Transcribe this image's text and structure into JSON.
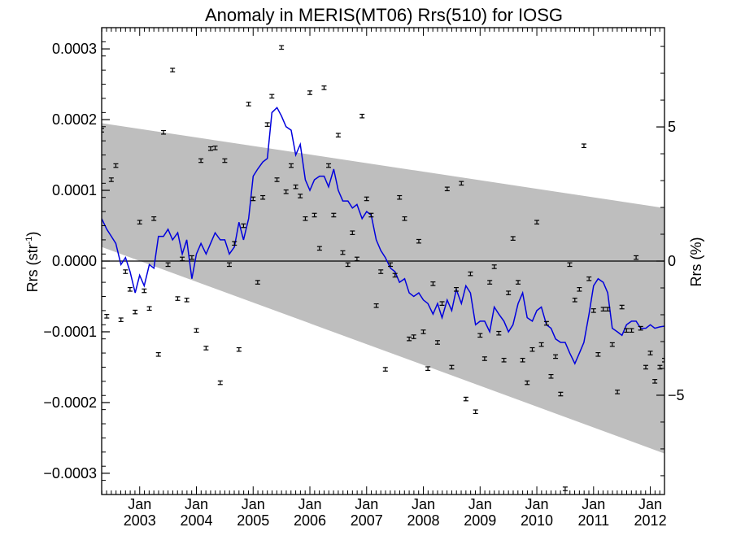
{
  "chart_data": {
    "type": "line",
    "title": "Anomaly in MERIS(MT06) Rrs(510) for IOSG",
    "ylabel_left": "Rrs (str",
    "ylabel_left_sup": "-1",
    "ylabel_left_close": ")",
    "ylabel_right": "Rrs (%)",
    "xlim": [
      2002.33,
      2012.25
    ],
    "ylim": [
      -0.00033,
      0.00033
    ],
    "ylim_right": [
      -8.7,
      8.7
    ],
    "grid": false,
    "left_ticks": [
      {
        "value": 0.0003,
        "label": "0.0003"
      },
      {
        "value": 0.0002,
        "label": "0.0002"
      },
      {
        "value": 0.0001,
        "label": "0.0001"
      },
      {
        "value": 0.0,
        "label": "0.0000"
      },
      {
        "value": -0.0001,
        "label": "−0.0001"
      },
      {
        "value": -0.0002,
        "label": "−0.0002"
      },
      {
        "value": -0.0003,
        "label": "−0.0003"
      }
    ],
    "right_ticks": [
      {
        "value": 5,
        "label": "5"
      },
      {
        "value": 0,
        "label": "0"
      },
      {
        "value": -5,
        "label": "−5"
      }
    ],
    "x_ticks": [
      {
        "value": 2003.0,
        "month": "Jan",
        "year": "2003"
      },
      {
        "value": 2004.0,
        "month": "Jan",
        "year": "2004"
      },
      {
        "value": 2005.0,
        "month": "Jan",
        "year": "2005"
      },
      {
        "value": 2006.0,
        "month": "Jan",
        "year": "2006"
      },
      {
        "value": 2007.0,
        "month": "Jan",
        "year": "2007"
      },
      {
        "value": 2008.0,
        "month": "Jan",
        "year": "2008"
      },
      {
        "value": 2009.0,
        "month": "Jan",
        "year": "2009"
      },
      {
        "value": 2010.0,
        "month": "Jan",
        "year": "2010"
      },
      {
        "value": 2011.0,
        "month": "Jan",
        "year": "2011"
      },
      {
        "value": 2012.0,
        "month": "Jan",
        "year": "2012"
      }
    ],
    "envelope": {
      "color": "#bebebe",
      "upper": [
        [
          2002.33,
          0.000195
        ],
        [
          2012.25,
          7.5e-05
        ]
      ],
      "lower": [
        [
          2002.33,
          2e-05
        ],
        [
          2012.25,
          -0.000272
        ]
      ]
    },
    "zero_line": 0.0,
    "colors": {
      "line": "#0000dd",
      "points": "#000000",
      "envelope": "#bebebe"
    },
    "series": [
      {
        "kind": "smoothed_line",
        "points": [
          [
            2002.33,
            6e-05
          ],
          [
            2002.42,
            4.5e-05
          ],
          [
            2002.5,
            3.5e-05
          ],
          [
            2002.58,
            2.5e-05
          ],
          [
            2002.67,
            -5e-06
          ],
          [
            2002.75,
            5e-06
          ],
          [
            2002.83,
            -1.5e-05
          ],
          [
            2002.92,
            -4.5e-05
          ],
          [
            2003.0,
            -2e-05
          ],
          [
            2003.08,
            -3.5e-05
          ],
          [
            2003.17,
            -5e-06
          ],
          [
            2003.25,
            -1e-05
          ],
          [
            2003.33,
            3.5e-05
          ],
          [
            2003.42,
            3.5e-05
          ],
          [
            2003.5,
            4.5e-05
          ],
          [
            2003.58,
            3e-05
          ],
          [
            2003.67,
            4e-05
          ],
          [
            2003.75,
            1e-05
          ],
          [
            2003.83,
            3e-05
          ],
          [
            2003.92,
            -2.5e-05
          ],
          [
            2004.0,
            1e-05
          ],
          [
            2004.08,
            2.5e-05
          ],
          [
            2004.17,
            1e-05
          ],
          [
            2004.25,
            2.5e-05
          ],
          [
            2004.33,
            4e-05
          ],
          [
            2004.42,
            3e-05
          ],
          [
            2004.5,
            3e-05
          ],
          [
            2004.58,
            1e-05
          ],
          [
            2004.67,
            2e-05
          ],
          [
            2004.75,
            5.5e-05
          ],
          [
            2004.83,
            3e-05
          ],
          [
            2004.92,
            6e-05
          ],
          [
            2005.0,
            0.00012
          ],
          [
            2005.08,
            0.00013
          ],
          [
            2005.17,
            0.00014
          ],
          [
            2005.25,
            0.000145
          ],
          [
            2005.33,
            0.00021
          ],
          [
            2005.42,
            0.000217
          ],
          [
            2005.5,
            0.000205
          ],
          [
            2005.58,
            0.00019
          ],
          [
            2005.67,
            0.000185
          ],
          [
            2005.75,
            0.00015
          ],
          [
            2005.83,
            0.000165
          ],
          [
            2005.92,
            0.000115
          ],
          [
            2006.0,
            0.0001
          ],
          [
            2006.08,
            0.000115
          ],
          [
            2006.17,
            0.00012
          ],
          [
            2006.25,
            0.00012
          ],
          [
            2006.33,
            0.000105
          ],
          [
            2006.42,
            0.00013
          ],
          [
            2006.5,
            0.0001
          ],
          [
            2006.58,
            8.5e-05
          ],
          [
            2006.67,
            8.5e-05
          ],
          [
            2006.75,
            7.5e-05
          ],
          [
            2006.83,
            8e-05
          ],
          [
            2006.92,
            6e-05
          ],
          [
            2007.0,
            7e-05
          ],
          [
            2007.08,
            6.5e-05
          ],
          [
            2007.17,
            3e-05
          ],
          [
            2007.25,
            1.5e-05
          ],
          [
            2007.33,
            5e-06
          ],
          [
            2007.42,
            -1e-05
          ],
          [
            2007.5,
            -1.5e-05
          ],
          [
            2007.58,
            -3e-05
          ],
          [
            2007.67,
            -2.5e-05
          ],
          [
            2007.75,
            -4.5e-05
          ],
          [
            2007.83,
            -5e-05
          ],
          [
            2007.92,
            -4.5e-05
          ],
          [
            2008.0,
            -5.5e-05
          ],
          [
            2008.08,
            -6e-05
          ],
          [
            2008.17,
            -7.5e-05
          ],
          [
            2008.25,
            -6e-05
          ],
          [
            2008.33,
            -8e-05
          ],
          [
            2008.42,
            -5.5e-05
          ],
          [
            2008.5,
            -7e-05
          ],
          [
            2008.58,
            -4e-05
          ],
          [
            2008.67,
            -6e-05
          ],
          [
            2008.75,
            -3.5e-05
          ],
          [
            2008.83,
            -4.5e-05
          ],
          [
            2008.92,
            -9e-05
          ],
          [
            2009.0,
            -8.5e-05
          ],
          [
            2009.08,
            -8.5e-05
          ],
          [
            2009.17,
            -0.0001
          ],
          [
            2009.25,
            -6.5e-05
          ],
          [
            2009.33,
            -7.5e-05
          ],
          [
            2009.42,
            -8.5e-05
          ],
          [
            2009.5,
            -0.0001
          ],
          [
            2009.58,
            -9e-05
          ],
          [
            2009.67,
            -6e-05
          ],
          [
            2009.75,
            -4.5e-05
          ],
          [
            2009.83,
            -8e-05
          ],
          [
            2009.92,
            -8.5e-05
          ],
          [
            2010.0,
            -7e-05
          ],
          [
            2010.08,
            -6.5e-05
          ],
          [
            2010.17,
            -9e-05
          ],
          [
            2010.25,
            -9.5e-05
          ],
          [
            2010.33,
            -0.00011
          ],
          [
            2010.42,
            -0.000115
          ],
          [
            2010.5,
            -0.000115
          ],
          [
            2010.58,
            -0.00013
          ],
          [
            2010.67,
            -0.000145
          ],
          [
            2010.75,
            -0.00013
          ],
          [
            2010.83,
            -0.000115
          ],
          [
            2010.92,
            -7.5e-05
          ],
          [
            2011.0,
            -3.5e-05
          ],
          [
            2011.08,
            -2.5e-05
          ],
          [
            2011.17,
            -3e-05
          ],
          [
            2011.25,
            -4.5e-05
          ],
          [
            2011.33,
            -9.5e-05
          ],
          [
            2011.42,
            -0.0001
          ],
          [
            2011.5,
            -0.000105
          ],
          [
            2011.58,
            -9e-05
          ],
          [
            2011.67,
            -8.5e-05
          ],
          [
            2011.75,
            -8.5e-05
          ],
          [
            2011.83,
            -9.5e-05
          ],
          [
            2011.92,
            -9.5e-05
          ],
          [
            2012.0,
            -9e-05
          ],
          [
            2012.08,
            -9.5e-05
          ],
          [
            2012.17,
            -9.3e-05
          ],
          [
            2012.25,
            -9.2e-05
          ]
        ]
      },
      {
        "kind": "points_with_error_bars",
        "points": [
          [
            2002.33,
            0.000185
          ],
          [
            2002.42,
            -7.8e-05
          ],
          [
            2002.5,
            0.000115
          ],
          [
            2002.58,
            0.000135
          ],
          [
            2002.67,
            -8.3e-05
          ],
          [
            2002.75,
            -1.5e-05
          ],
          [
            2002.83,
            -4e-05
          ],
          [
            2002.92,
            -7.2e-05
          ],
          [
            2003.0,
            5.5e-05
          ],
          [
            2003.08,
            -4.2e-05
          ],
          [
            2003.17,
            -6.7e-05
          ],
          [
            2003.25,
            6e-05
          ],
          [
            2003.33,
            -0.000132
          ],
          [
            2003.42,
            0.000182
          ],
          [
            2003.5,
            -5e-06
          ],
          [
            2003.58,
            0.00027
          ],
          [
            2003.67,
            -5.3e-05
          ],
          [
            2003.75,
            3e-06
          ],
          [
            2003.83,
            -5.5e-05
          ],
          [
            2003.92,
            5e-06
          ],
          [
            2004.0,
            -9.8e-05
          ],
          [
            2004.08,
            0.000142
          ],
          [
            2004.17,
            -0.000123
          ],
          [
            2004.25,
            0.000159
          ],
          [
            2004.33,
            0.00016
          ],
          [
            2004.42,
            -0.000172
          ],
          [
            2004.5,
            0.000142
          ],
          [
            2004.58,
            -5e-06
          ],
          [
            2004.67,
            2.5e-05
          ],
          [
            2004.75,
            -0.000125
          ],
          [
            2004.83,
            5e-05
          ],
          [
            2004.92,
            0.000222
          ],
          [
            2005.0,
            8.8e-05
          ],
          [
            2005.08,
            -3e-05
          ],
          [
            2005.17,
            9e-05
          ],
          [
            2005.25,
            0.000193
          ],
          [
            2005.33,
            0.000233
          ],
          [
            2005.42,
            0.000115
          ],
          [
            2005.5,
            0.000302
          ],
          [
            2005.58,
            9.8e-05
          ],
          [
            2005.67,
            0.000135
          ],
          [
            2005.75,
            0.000105
          ],
          [
            2005.83,
            9.2e-05
          ],
          [
            2005.92,
            6e-05
          ],
          [
            2006.0,
            0.000238
          ],
          [
            2006.08,
            6.5e-05
          ],
          [
            2006.17,
            1.8e-05
          ],
          [
            2006.25,
            0.000245
          ],
          [
            2006.33,
            0.000135
          ],
          [
            2006.42,
            6.5e-05
          ],
          [
            2006.5,
            0.000178
          ],
          [
            2006.58,
            1.2e-05
          ],
          [
            2006.67,
            -5e-06
          ],
          [
            2006.75,
            4e-05
          ],
          [
            2006.83,
            3e-06
          ],
          [
            2006.92,
            0.000205
          ],
          [
            2007.0,
            8.8e-05
          ],
          [
            2007.08,
            6.5e-05
          ],
          [
            2007.17,
            -6.3e-05
          ],
          [
            2007.25,
            -1.5e-05
          ],
          [
            2007.33,
            -0.000153
          ],
          [
            2007.42,
            -5e-06
          ],
          [
            2007.5,
            -2e-05
          ],
          [
            2007.58,
            9e-05
          ],
          [
            2007.67,
            6e-05
          ],
          [
            2007.75,
            -0.00011
          ],
          [
            2007.83,
            -0.000107
          ],
          [
            2007.92,
            2.8e-05
          ],
          [
            2008.0,
            -0.0001
          ],
          [
            2008.08,
            -0.000152
          ],
          [
            2008.17,
            -3.2e-05
          ],
          [
            2008.25,
            -0.000115
          ],
          [
            2008.33,
            -6e-05
          ],
          [
            2008.42,
            0.000102
          ],
          [
            2008.5,
            -0.00015
          ],
          [
            2008.58,
            -4e-05
          ],
          [
            2008.67,
            0.00011
          ],
          [
            2008.75,
            -0.000195
          ],
          [
            2008.83,
            -1.8e-05
          ],
          [
            2008.92,
            -0.000213
          ],
          [
            2009.0,
            -0.000105
          ],
          [
            2009.08,
            -0.000138
          ],
          [
            2009.17,
            -3e-05
          ],
          [
            2009.25,
            -8e-06
          ],
          [
            2009.33,
            -0.000102
          ],
          [
            2009.42,
            -0.00014
          ],
          [
            2009.5,
            -4.5e-05
          ],
          [
            2009.58,
            3.2e-05
          ],
          [
            2009.67,
            -3e-05
          ],
          [
            2009.75,
            -0.00014
          ],
          [
            2009.83,
            -0.000172
          ],
          [
            2009.92,
            -0.000125
          ],
          [
            2010.0,
            5.5e-05
          ],
          [
            2010.08,
            -0.000118
          ],
          [
            2010.17,
            -8.8e-05
          ],
          [
            2010.25,
            -0.000163
          ],
          [
            2010.33,
            -0.000135
          ],
          [
            2010.42,
            -0.000188
          ],
          [
            2010.5,
            -0.000322
          ],
          [
            2010.58,
            -5e-06
          ],
          [
            2010.67,
            -5.5e-05
          ],
          [
            2010.75,
            -4e-05
          ],
          [
            2010.83,
            0.000163
          ],
          [
            2010.92,
            -2.5e-05
          ],
          [
            2011.0,
            -7e-05
          ],
          [
            2011.08,
            -0.000132
          ],
          [
            2011.17,
            -6.8e-05
          ],
          [
            2011.25,
            -6.8e-05
          ],
          [
            2011.33,
            -0.000118
          ],
          [
            2011.42,
            -0.000185
          ],
          [
            2011.5,
            -6.5e-05
          ],
          [
            2011.58,
            -9.8e-05
          ],
          [
            2011.67,
            -9.8e-05
          ],
          [
            2011.75,
            5e-06
          ],
          [
            2011.83,
            -9.5e-05
          ],
          [
            2011.92,
            -0.00015
          ],
          [
            2012.0,
            -0.00013
          ],
          [
            2012.08,
            -0.00017
          ],
          [
            2012.17,
            -0.00015
          ],
          [
            2012.25,
            -0.00014
          ]
        ]
      }
    ]
  }
}
